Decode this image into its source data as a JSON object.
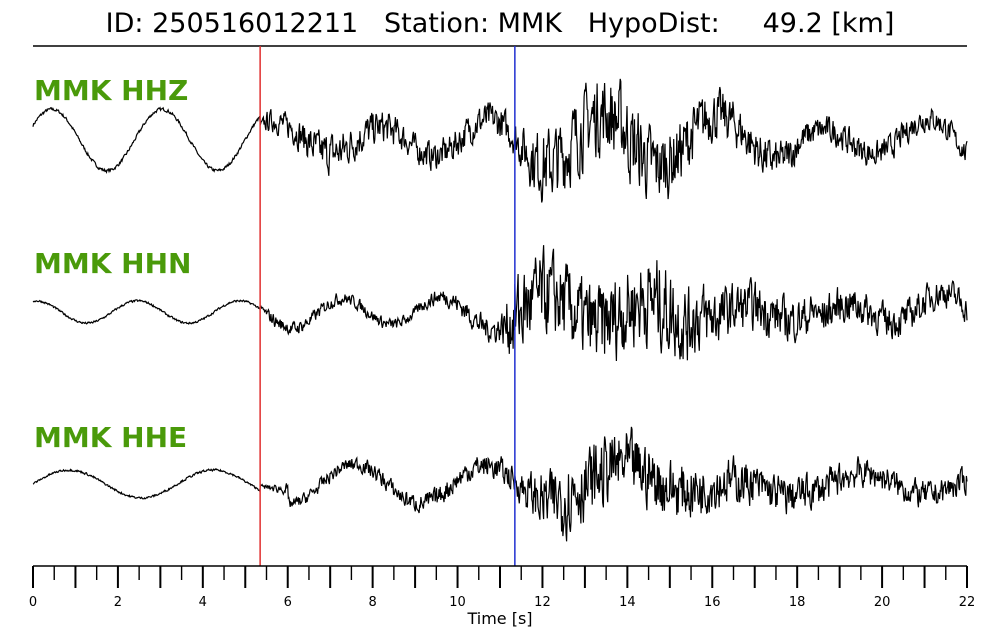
{
  "header": {
    "id_label": "ID:",
    "id_value": "250516012211",
    "station_label": "Station:",
    "station_value": "MMK",
    "hypodist_label": "HypoDist:",
    "hypodist_value": "49.2",
    "hypodist_unit": "[km]"
  },
  "chart_data": {
    "type": "line",
    "title": "ID: 250516012211   Station: MMK   HypoDist:     49.2 [km]",
    "xlabel": "Time [s]",
    "xlim": [
      0,
      22
    ],
    "x_ticks": [
      0,
      2,
      4,
      6,
      8,
      10,
      12,
      14,
      16,
      18,
      20,
      22
    ],
    "minor_tick_step": 0.5,
    "grid": false,
    "colors": {
      "trace": "#000000",
      "label": "#4a9a0a",
      "p_pick": "#e03030",
      "s_pick": "#2030d0"
    },
    "picks": [
      {
        "name": "P",
        "time": 5.35
      },
      {
        "name": "S",
        "time": 11.35
      }
    ],
    "channels": [
      {
        "name": "MMK HHZ",
        "pre_amp": 0.55,
        "envelope": [
          [
            0,
            0.06
          ],
          [
            5.35,
            0.06
          ],
          [
            5.5,
            0.22
          ],
          [
            7,
            0.45
          ],
          [
            9,
            0.3
          ],
          [
            11.35,
            0.38
          ],
          [
            12,
            0.8
          ],
          [
            14.2,
            0.9
          ],
          [
            16,
            0.55
          ],
          [
            18.5,
            0.3
          ],
          [
            22,
            0.25
          ]
        ],
        "low_freq": [
          [
            0,
            0.7,
            2.6,
            0.5
          ],
          [
            6,
            0.25,
            3.4,
            1.8
          ],
          [
            14,
            0.2,
            3.8,
            0.4
          ],
          [
            18,
            0.25,
            3.6,
            2.2
          ]
        ]
      },
      {
        "name": "MMK HHN",
        "pre_amp": 0.2,
        "envelope": [
          [
            0,
            0.04
          ],
          [
            5.35,
            0.04
          ],
          [
            5.6,
            0.15
          ],
          [
            9,
            0.12
          ],
          [
            11,
            0.3
          ],
          [
            11.35,
            0.95
          ],
          [
            13,
            0.9
          ],
          [
            14.8,
            1.0
          ],
          [
            16.5,
            0.55
          ],
          [
            19,
            0.4
          ],
          [
            22,
            0.3
          ]
        ],
        "low_freq": [
          [
            0,
            0.55,
            2.4,
            1.4
          ],
          [
            6,
            0.1,
            4.0,
            0.5
          ],
          [
            15.5,
            0.45,
            3.0,
            0.8
          ],
          [
            18.5,
            0.35,
            3.4,
            1.9
          ]
        ]
      },
      {
        "name": "MMK HHE",
        "pre_amp": 0.25,
        "envelope": [
          [
            0,
            0.04
          ],
          [
            5.35,
            0.04
          ],
          [
            6,
            0.12
          ],
          [
            9,
            0.2
          ],
          [
            11.35,
            0.3
          ],
          [
            12.5,
            0.85
          ],
          [
            14,
            0.75
          ],
          [
            17,
            0.45
          ],
          [
            20,
            0.3
          ],
          [
            22,
            0.28
          ]
        ],
        "low_freq": [
          [
            0,
            0.18,
            3.4,
            0.0
          ],
          [
            6,
            0.55,
            3.0,
            4.6
          ],
          [
            13,
            0.35,
            4.6,
            0.4
          ],
          [
            18,
            0.3,
            4.2,
            1.0
          ]
        ]
      }
    ]
  }
}
